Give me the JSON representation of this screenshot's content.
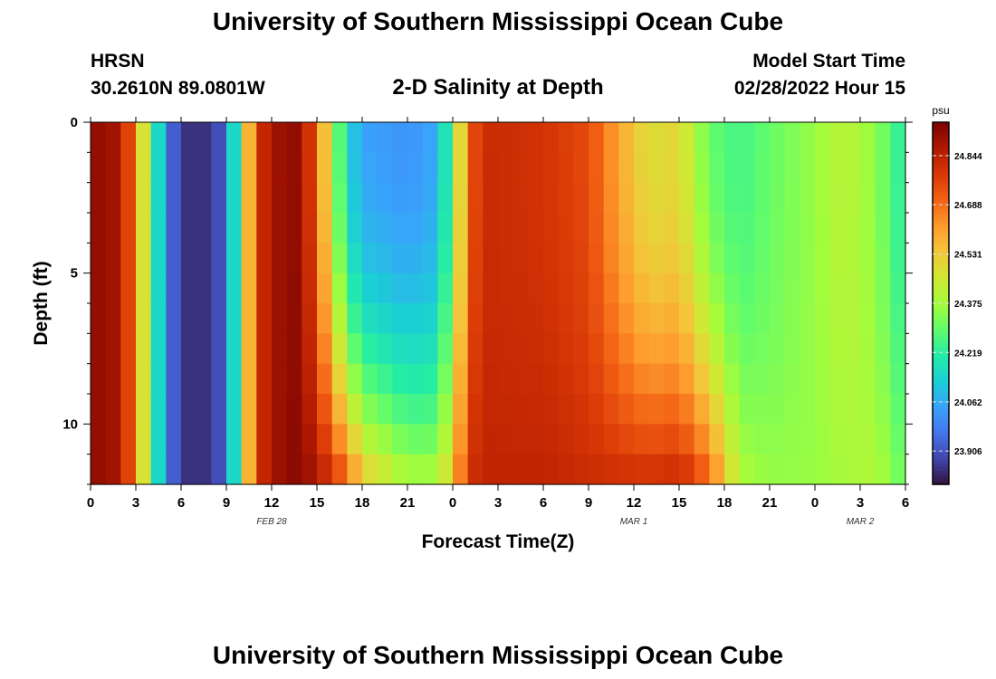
{
  "header": {
    "title": "University of Southern Mississippi Ocean Cube",
    "station": "HRSN",
    "coords": "30.2610N  89.0801W",
    "subtitle": "2-D Salinity at Depth",
    "start_label": "Model Start Time",
    "start_time": "02/28/2022 Hour 15"
  },
  "footer": {
    "title": "University of Southern Mississippi Ocean Cube"
  },
  "chart_data": {
    "type": "heatmap",
    "title": "2-D Salinity at Depth",
    "xlabel": "Forecast Time(Z)",
    "ylabel": "Depth (ft)",
    "x_range_hours": [
      0,
      54
    ],
    "y_range_ft": [
      0,
      12
    ],
    "x_ticks": [
      "0",
      "3",
      "6",
      "9",
      "12",
      "15",
      "18",
      "21",
      "0",
      "3",
      "6",
      "9",
      "12",
      "15",
      "18",
      "21",
      "0",
      "3",
      "6"
    ],
    "y_ticks": [
      "0",
      "5",
      "10"
    ],
    "date_labels": [
      {
        "text": "FEB 28",
        "hour": 12
      },
      {
        "text": "MAR 1",
        "hour": 36
      },
      {
        "text": "MAR 2",
        "hour": 51
      }
    ],
    "colorbar": {
      "unit": "psu",
      "min": 23.8,
      "max": 24.95,
      "ticks": [
        "24.844",
        "24.688",
        "24.531",
        "24.375",
        "24.219",
        "24.062",
        "23.906"
      ],
      "tick_values": [
        24.844,
        24.688,
        24.531,
        24.375,
        24.219,
        24.062,
        23.906
      ]
    },
    "colormap": [
      "#30123b",
      "#4145ab",
      "#4675ed",
      "#39a2fc",
      "#1bcfd4",
      "#24eca6",
      "#61fc6c",
      "#a4fc3b",
      "#d1e834",
      "#f3c63a",
      "#fe9b2d",
      "#f36315",
      "#d93806",
      "#b11901",
      "#7a0402"
    ],
    "profile_hours": [
      0,
      2,
      3,
      4,
      5,
      6,
      8,
      9,
      10,
      11,
      13,
      14,
      15,
      16,
      17,
      18,
      21,
      23,
      24,
      25,
      26,
      30,
      33,
      35,
      37,
      39,
      41,
      43,
      45,
      48,
      50,
      52,
      54
    ],
    "surface_salinity": [
      24.92,
      24.88,
      24.65,
      24.3,
      24.0,
      23.85,
      23.85,
      23.95,
      24.35,
      24.8,
      24.93,
      24.9,
      24.7,
      24.4,
      24.15,
      24.05,
      24.02,
      24.06,
      24.3,
      24.7,
      24.82,
      24.8,
      24.75,
      24.6,
      24.48,
      24.5,
      24.3,
      24.25,
      24.3,
      24.36,
      24.42,
      24.35,
      24.2
    ],
    "bottom_salinity": [
      24.92,
      24.88,
      24.65,
      24.3,
      24.0,
      23.85,
      23.85,
      23.95,
      24.35,
      24.8,
      24.93,
      24.92,
      24.88,
      24.82,
      24.72,
      24.55,
      24.4,
      24.4,
      24.55,
      24.8,
      24.84,
      24.84,
      24.82,
      24.82,
      24.82,
      24.84,
      24.72,
      24.4,
      24.36,
      24.36,
      24.38,
      24.4,
      24.3
    ],
    "depth_rows": 12
  }
}
